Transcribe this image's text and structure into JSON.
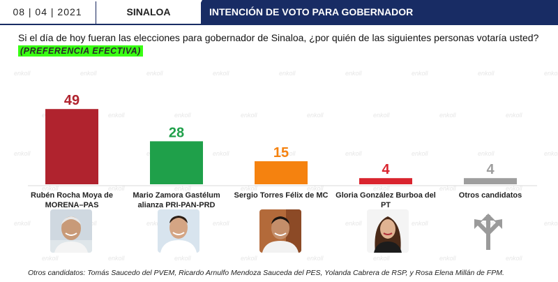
{
  "header": {
    "date": "08 | 04 | 2021",
    "state": "SINALOA",
    "title": "INTENCIÓN DE VOTO PARA GOBERNADOR"
  },
  "question": "Si el día de hoy fueran las elecciones para gobernador de Sinaloa, ¿por quién de las siguientes personas votaría usted?",
  "badge": "(PREFERENCIA EFECTIVA)",
  "footnote": "Otros candidatos: Tomás Saucedo del PVEM, Ricardo Arnulfo Mendoza Sauceda del PES, Yolanda Cabrera de RSP, y Rosa Elena Millán de FPM.",
  "watermark": "enkoll",
  "chart_data": {
    "type": "bar",
    "categories": [
      "Rubén Rocha Moya de MORENA–PAS",
      "Mario Zamora Gastélum alianza PRI-PAN-PRD",
      "Sergio Torres Félix de MC",
      "Gloria González Burboa del PT",
      "Otros candidatos"
    ],
    "category_lines": [
      [
        "Rubén Rocha Moya de",
        "MORENA–PAS"
      ],
      [
        "Mario Zamora Gastélum",
        "alianza PRI-PAN-PRD"
      ],
      [
        "Sergio Torres Félix de MC"
      ],
      [
        "Gloria González Burboa del PT"
      ],
      [
        "Otros candidatos"
      ]
    ],
    "values": [
      49,
      28,
      15,
      4,
      4
    ],
    "colors": [
      "#b0232e",
      "#1fa04a",
      "#f5820f",
      "#d9242e",
      "#9e9e9e"
    ],
    "ylim": [
      0,
      50
    ],
    "grid": false,
    "title": "",
    "xlabel": "",
    "ylabel": ""
  },
  "icons": {
    "photos": [
      "candidate-photo-rocha",
      "candidate-photo-zamora",
      "candidate-photo-torres",
      "candidate-photo-gonzalez"
    ],
    "others": "split-arrows-icon"
  }
}
